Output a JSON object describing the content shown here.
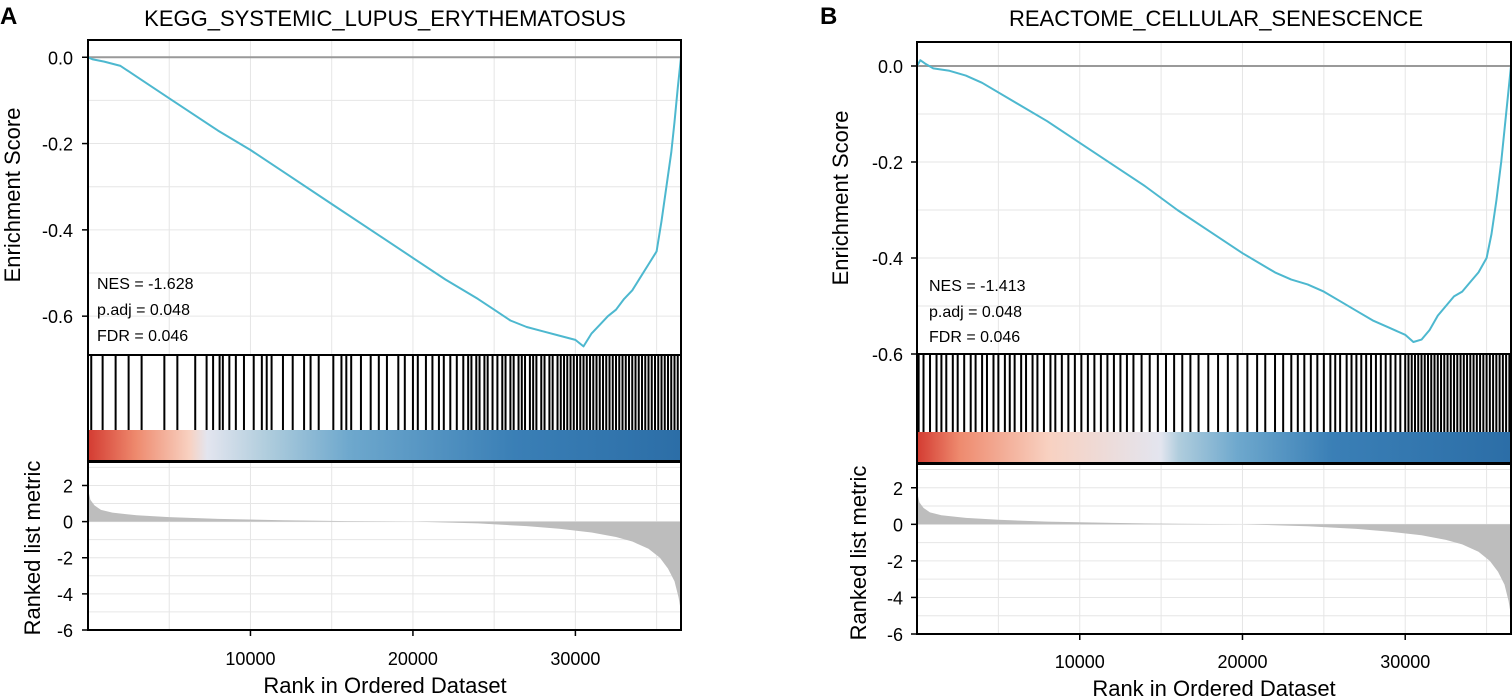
{
  "figure": {
    "title": "Two GSEA enrichment plots",
    "colors": {
      "es_line": "#4db8cf",
      "zero_line": "#999999",
      "grid": "#e6e6e6",
      "hits": "#000000",
      "metric_fill": "#bdbdbd",
      "heat_stops": [
        "#d43d33",
        "#ee8a6e",
        "#f8d1c1",
        "#e3e5ef",
        "#b0cddd",
        "#6ea8cd",
        "#3a7fb6",
        "#2c6ea7"
      ]
    }
  },
  "chart_data": [
    {
      "type": "line",
      "panel_label": "A",
      "title": "KEGG_SYSTEMIC_LUPUS_ERYTHEMATOSUS",
      "xlabel": "Rank in Ordered Dataset",
      "ylabel_es": "Enrichment Score",
      "ylabel_metric": "Ranked list metric",
      "xlim": [
        0,
        36500
      ],
      "x_ticks": [
        10000,
        20000,
        30000
      ],
      "x_tick_labels": [
        "10000",
        "20000",
        "30000"
      ],
      "es_ylim": [
        -0.69,
        0.04
      ],
      "es_ticks": [
        0.0,
        -0.2,
        -0.4,
        -0.6
      ],
      "es_tick_labels": [
        "0.0",
        "-0.2",
        "-0.4",
        "-0.6"
      ],
      "metric_ylim": [
        -6,
        3.3
      ],
      "metric_ticks": [
        2,
        0,
        -2,
        -4,
        -6
      ],
      "metric_tick_labels": [
        "2",
        "0",
        "-2",
        "-4",
        "-6"
      ],
      "stats": {
        "nes": "NES = -1.628",
        "padj": "p.adj = 0.048",
        "fdr": "FDR = 0.046"
      },
      "es_curve": {
        "x": [
          0,
          300,
          1000,
          2000,
          3000,
          5000,
          8000,
          10000,
          12000,
          15000,
          18000,
          20000,
          22000,
          24000,
          25000,
          26000,
          27000,
          28000,
          29000,
          30000,
          30500,
          31000,
          31500,
          32000,
          32500,
          33000,
          33500,
          34000,
          34500,
          35000,
          35300,
          35600,
          35900,
          36100,
          36300,
          36500
        ],
        "y": [
          0.0,
          -0.005,
          -0.01,
          -0.02,
          -0.045,
          -0.095,
          -0.17,
          -0.215,
          -0.265,
          -0.34,
          -0.415,
          -0.465,
          -0.515,
          -0.56,
          -0.585,
          -0.61,
          -0.625,
          -0.635,
          -0.645,
          -0.655,
          -0.67,
          -0.64,
          -0.62,
          -0.6,
          -0.585,
          -0.56,
          -0.54,
          -0.51,
          -0.48,
          -0.45,
          -0.38,
          -0.3,
          -0.22,
          -0.15,
          -0.07,
          0.0
        ]
      },
      "hits": [
        200,
        900,
        1700,
        2500,
        3300,
        4700,
        5500,
        6600,
        7300,
        7700,
        8100,
        8300,
        8700,
        9100,
        9600,
        10200,
        10700,
        11000,
        11300,
        12000,
        12600,
        13300,
        13700,
        14200,
        15100,
        15600,
        15900,
        16200,
        16800,
        17400,
        17900,
        18400,
        19100,
        19500,
        20000,
        20300,
        20800,
        21200,
        21600,
        21900,
        22300,
        22700,
        23100,
        23400,
        23600,
        23900,
        24100,
        24400,
        24600,
        24900,
        25200,
        25500,
        25700,
        26000,
        26200,
        26500,
        26700,
        26900,
        27200,
        27400,
        27600,
        27900,
        28100,
        28400,
        28600,
        28900,
        29100,
        29300,
        29500,
        29700,
        29900,
        30100,
        30300,
        30500,
        30700,
        30900,
        31100,
        31300,
        31500,
        31700,
        31900,
        32100,
        32300,
        32500,
        32700,
        32900,
        33100,
        33300,
        33500,
        33700,
        33900,
        34100,
        34300,
        34500,
        34700,
        34900,
        35100,
        35300,
        35500,
        35700,
        35900,
        36100,
        36300
      ],
      "heat_stops_at": [
        0,
        0.08,
        0.17,
        0.2,
        0.3,
        0.44,
        0.72,
        1.0
      ],
      "metric_curve": {
        "x": [
          0,
          50,
          150,
          400,
          800,
          1500,
          3000,
          5000,
          8000,
          12000,
          16000,
          20000,
          24000,
          27000,
          29000,
          31000,
          32500,
          33500,
          34500,
          35200,
          35700,
          36100,
          36350,
          36500
        ],
        "y": [
          2.6,
          1.6,
          1.2,
          0.9,
          0.65,
          0.5,
          0.35,
          0.25,
          0.15,
          0.08,
          0.03,
          0.0,
          -0.1,
          -0.25,
          -0.4,
          -0.6,
          -0.85,
          -1.1,
          -1.5,
          -2.0,
          -2.6,
          -3.3,
          -4.2,
          -5.0
        ]
      }
    },
    {
      "type": "line",
      "panel_label": "B",
      "title": "REACTOME_CELLULAR_SENESCENCE",
      "xlabel": "Rank in Ordered Dataset",
      "ylabel_es": "Enrichment Score",
      "ylabel_metric": "Ranked list metric",
      "xlim": [
        0,
        36500
      ],
      "x_ticks": [
        10000,
        20000,
        30000
      ],
      "x_tick_labels": [
        "10000",
        "20000",
        "30000"
      ],
      "es_ylim": [
        -0.6,
        0.05
      ],
      "es_ticks": [
        0.0,
        -0.2,
        -0.4,
        -0.6
      ],
      "es_tick_labels": [
        "0.0",
        "-0.2",
        "-0.4",
        "-0.6"
      ],
      "metric_ylim": [
        -6,
        3.3
      ],
      "metric_ticks": [
        2,
        0,
        -2,
        -4,
        -6
      ],
      "metric_tick_labels": [
        "2",
        "0",
        "-2",
        "-4",
        "-6"
      ],
      "stats": {
        "nes": "NES = -1.413",
        "padj": "p.adj = 0.048",
        "fdr": "FDR = 0.046"
      },
      "es_curve": {
        "x": [
          0,
          200,
          500,
          1000,
          2000,
          3000,
          4000,
          6000,
          8000,
          10000,
          12000,
          14000,
          16000,
          18000,
          20000,
          22000,
          23000,
          24000,
          25000,
          26000,
          27000,
          28000,
          29000,
          30000,
          30500,
          31000,
          31500,
          32000,
          32500,
          33000,
          33500,
          34000,
          34500,
          35000,
          35300,
          35600,
          35900,
          36200,
          36500
        ],
        "y": [
          0.0,
          0.012,
          0.005,
          -0.005,
          -0.01,
          -0.02,
          -0.035,
          -0.075,
          -0.115,
          -0.16,
          -0.205,
          -0.25,
          -0.3,
          -0.345,
          -0.39,
          -0.43,
          -0.445,
          -0.455,
          -0.47,
          -0.49,
          -0.51,
          -0.53,
          -0.545,
          -0.56,
          -0.575,
          -0.57,
          -0.55,
          -0.52,
          -0.5,
          -0.48,
          -0.47,
          -0.45,
          -0.43,
          -0.4,
          -0.35,
          -0.28,
          -0.2,
          -0.1,
          0.0
        ]
      },
      "hits": [
        100,
        400,
        800,
        1200,
        1500,
        1800,
        2200,
        2500,
        2900,
        3300,
        3600,
        4000,
        4300,
        4700,
        5000,
        5400,
        5700,
        6000,
        6400,
        6700,
        7100,
        7400,
        7800,
        8200,
        8500,
        8900,
        9300,
        9700,
        10100,
        10500,
        10900,
        11300,
        11700,
        12100,
        12500,
        12900,
        13300,
        13800,
        14300,
        14800,
        15300,
        15800,
        16300,
        16800,
        17300,
        17900,
        18500,
        19100,
        19700,
        20300,
        20900,
        21400,
        22000,
        22500,
        23000,
        23400,
        23800,
        24200,
        24600,
        25000,
        25400,
        25700,
        26000,
        26400,
        26700,
        27000,
        27300,
        27600,
        27900,
        28200,
        28500,
        28800,
        29100,
        29400,
        29700,
        30000,
        30200,
        30400,
        30600,
        30800,
        31000,
        31200,
        31400,
        31600,
        31800,
        32000,
        32200,
        32400,
        32600,
        32800,
        33000,
        33200,
        33400,
        33600,
        33800,
        34000,
        34200,
        34400,
        34600,
        34800,
        35000,
        35200,
        35400,
        35600,
        35800,
        36000,
        36200,
        36400
      ],
      "heat_stops_at": [
        0,
        0.07,
        0.22,
        0.41,
        0.44,
        0.54,
        0.7,
        1.0
      ],
      "metric_curve": {
        "x": [
          0,
          50,
          150,
          400,
          800,
          1500,
          3000,
          5000,
          8000,
          12000,
          16000,
          20000,
          24000,
          27000,
          29000,
          31000,
          32500,
          33500,
          34500,
          35200,
          35700,
          36100,
          36350,
          36500
        ],
        "y": [
          2.6,
          1.6,
          1.2,
          0.9,
          0.65,
          0.5,
          0.35,
          0.25,
          0.15,
          0.08,
          0.03,
          0.0,
          -0.1,
          -0.25,
          -0.4,
          -0.6,
          -0.85,
          -1.1,
          -1.5,
          -2.0,
          -2.6,
          -3.3,
          -4.2,
          -5.0
        ]
      }
    }
  ]
}
